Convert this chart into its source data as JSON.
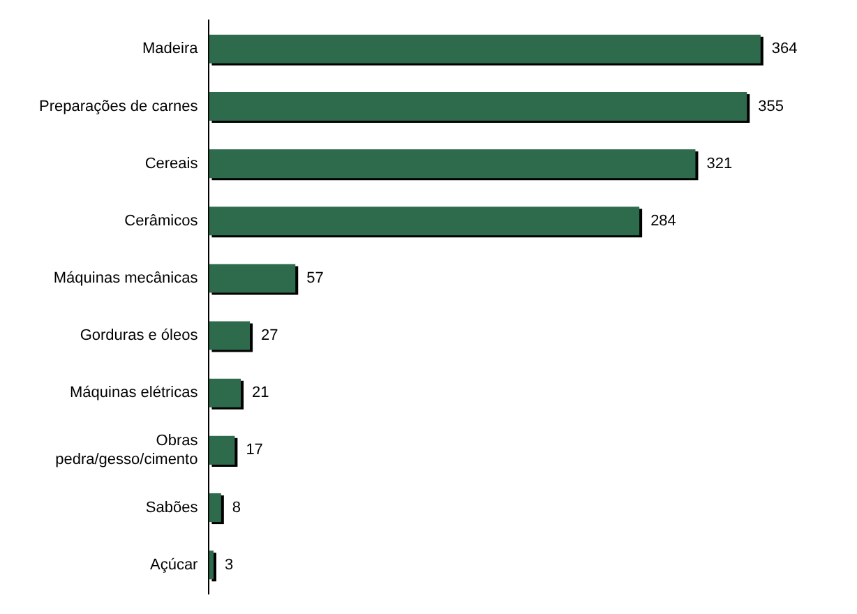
{
  "chart_data": {
    "type": "bar",
    "orientation": "horizontal",
    "categories": [
      "Madeira",
      "Preparações de carnes",
      "Cereais",
      "Cerâmicos",
      "Máquinas mecânicas",
      "Gorduras e óleos",
      "Máquinas elétricas",
      "Obras pedra/gesso/cimento",
      "Sabões",
      "Açúcar"
    ],
    "values": [
      364,
      355,
      321,
      284,
      57,
      27,
      21,
      17,
      8,
      3
    ],
    "color": "#2e6a4c",
    "data_labels": true,
    "legend": false,
    "tick_labels": "y"
  }
}
